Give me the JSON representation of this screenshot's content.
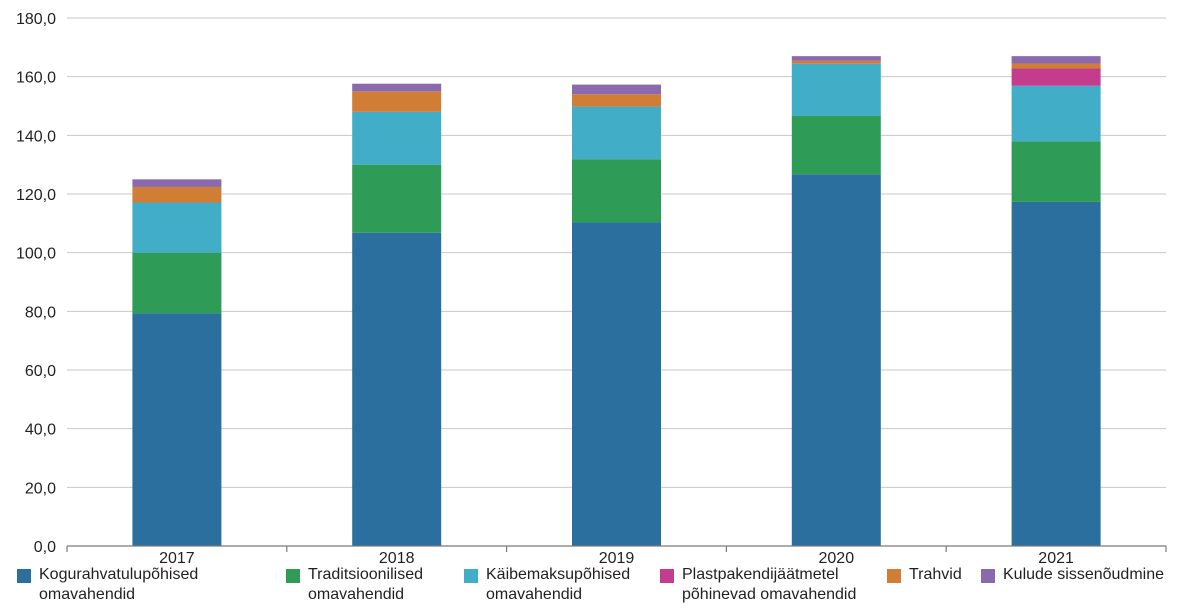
{
  "chart_data": {
    "type": "bar",
    "stacked": true,
    "categories": [
      "2017",
      "2018",
      "2019",
      "2020",
      "2021"
    ],
    "ylim": [
      0,
      180
    ],
    "yticks": [
      "0,0",
      "20,0",
      "40,0",
      "60,0",
      "80,0",
      "100,0",
      "120,0",
      "140,0",
      "160,0",
      "180,0"
    ],
    "grid": true,
    "legend_position": "bottom",
    "series": [
      {
        "name": "Kogurahvatulupõhised\nomavahendid",
        "color": "#2b6f9e",
        "values": [
          79.3,
          106.8,
          110.3,
          126.7,
          117.3
        ]
      },
      {
        "name": "Traditsioonilised\nomavahendid",
        "color": "#2e9b56",
        "values": [
          20.7,
          23.2,
          21.5,
          19.9,
          20.7
        ]
      },
      {
        "name": "Käibemaksupõhised\nomavahendid",
        "color": "#42adc6",
        "values": [
          17.1,
          18.0,
          18.0,
          17.8,
          18.9
        ]
      },
      {
        "name": "Plastpakendijäätmetel\npõhinevad omavahendid",
        "color": "#c43c8e",
        "values": [
          0,
          0,
          0,
          0,
          5.9
        ]
      },
      {
        "name": "Trahvid",
        "color": "#d07d35",
        "values": [
          5.3,
          7.0,
          4.2,
          1.0,
          1.7
        ]
      },
      {
        "name": "Kulude sissenõudmine",
        "color": "#8a6aad",
        "values": [
          2.6,
          2.6,
          3.3,
          1.6,
          2.5
        ]
      }
    ]
  }
}
